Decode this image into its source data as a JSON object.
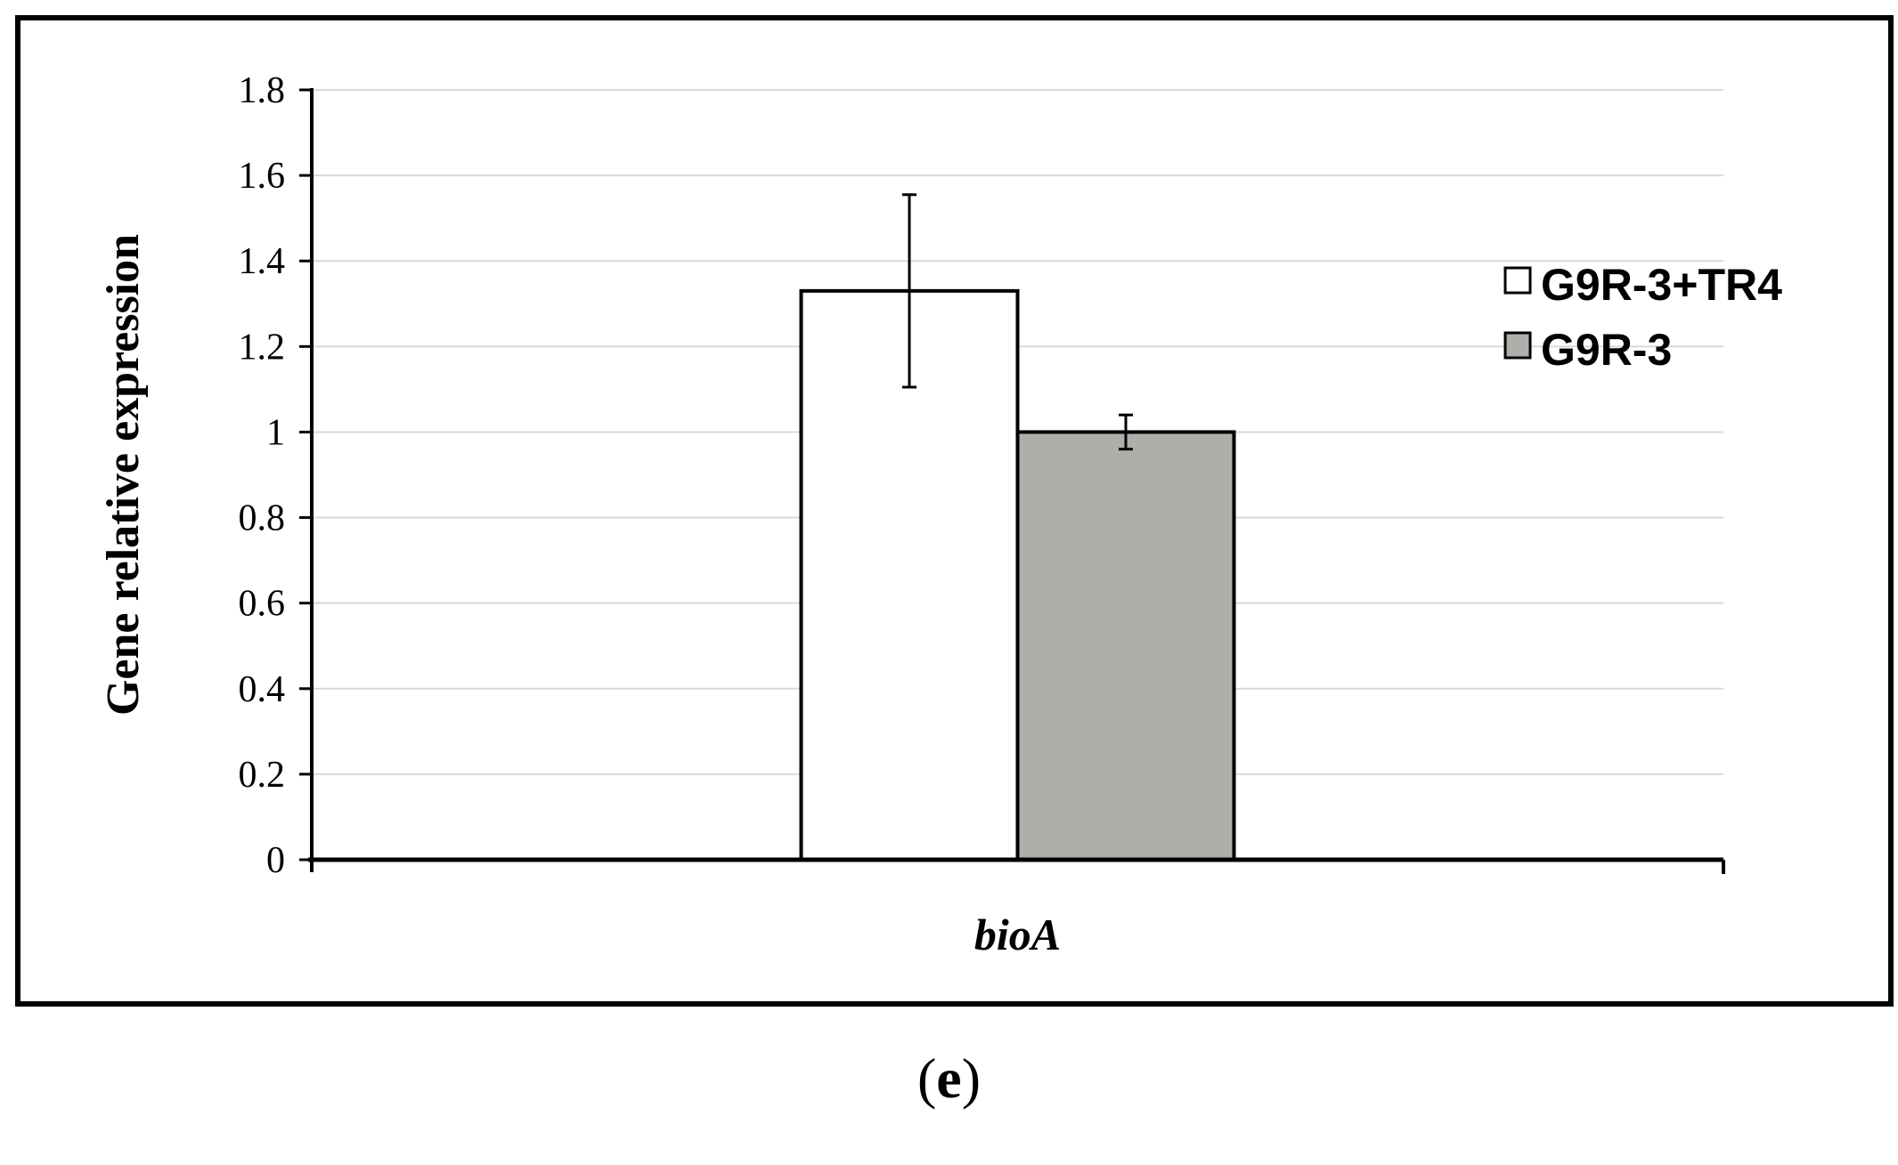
{
  "chart_data": {
    "type": "bar",
    "title": "",
    "xlabel": "",
    "ylabel": "Gene relative expression",
    "categories": [
      "bioA"
    ],
    "ylim": [
      0,
      1.8
    ],
    "yticks": [
      "0",
      "0.2",
      "0.4",
      "0.6",
      "0.8",
      "1",
      "1.2",
      "1.4",
      "1.6",
      "1.8"
    ],
    "grid": true,
    "legend_position": "right",
    "series": [
      {
        "name": "G9R-3+TR4",
        "values": [
          1.33
        ],
        "error": [
          0.225
        ],
        "color": "#ffffff"
      },
      {
        "name": "G9R-3",
        "values": [
          1.0
        ],
        "error": [
          0.04
        ],
        "color": "#b0aeab"
      }
    ]
  },
  "panel": {
    "open": "(",
    "letter": "e",
    "close": ")"
  }
}
